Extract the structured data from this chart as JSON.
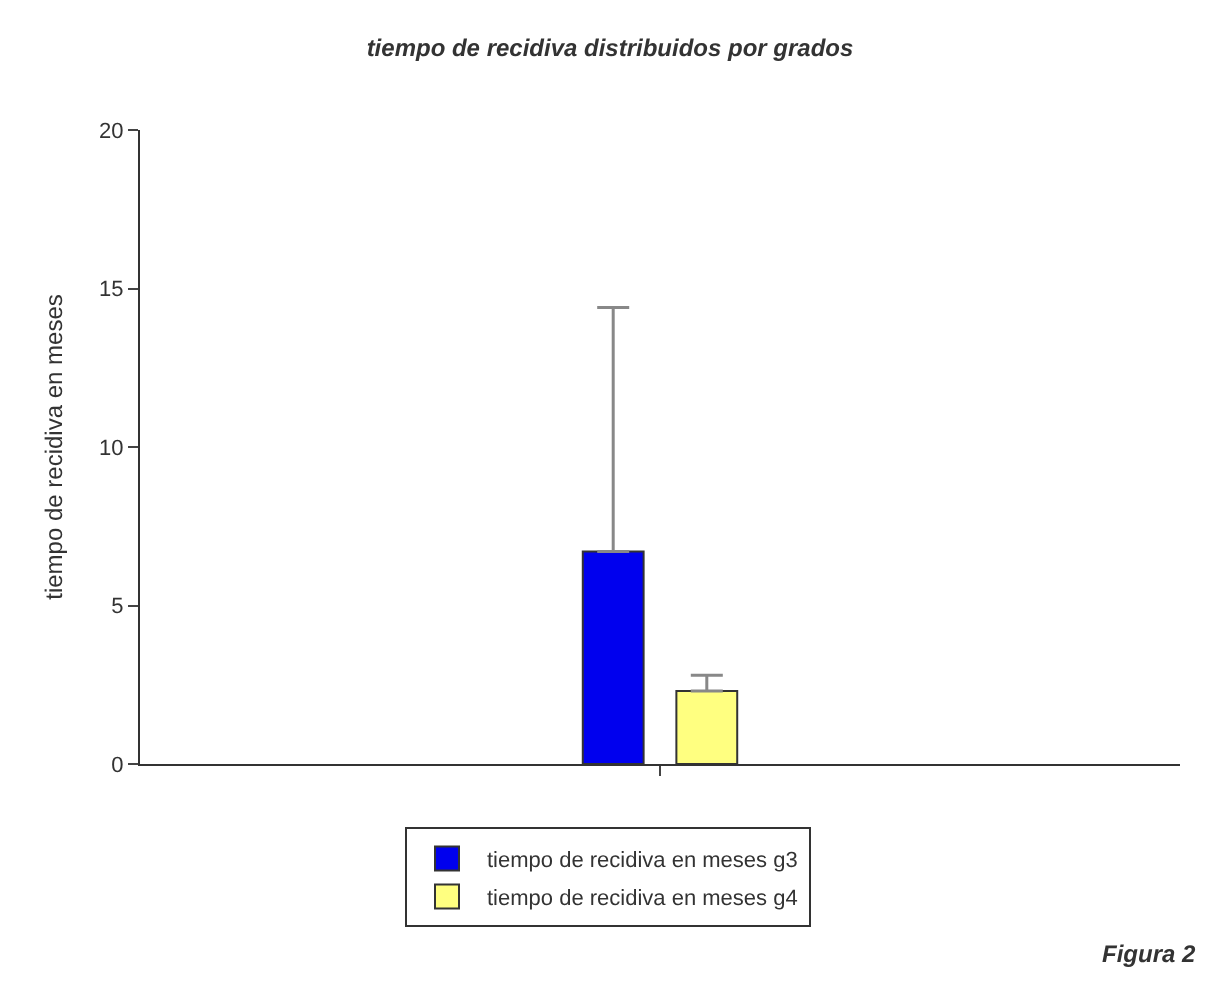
{
  "chart_data": {
    "type": "bar",
    "title": "tiempo de recidiva distribuidos por grados",
    "ylabel": "tiempo de recidiva en meses",
    "categories": [
      null
    ],
    "series": [
      {
        "name": "tiempo de recidiva en meses g3",
        "color": "#0000ee",
        "values": [
          6.7
        ],
        "errors": [
          [
            6.7,
            14.4
          ]
        ]
      },
      {
        "name": "tiempo de recidiva en meses g4",
        "color": "#ffff80",
        "values": [
          2.3
        ],
        "errors": [
          [
            2.3,
            2.8
          ]
        ]
      }
    ],
    "ylim": [
      0,
      20
    ],
    "yticks": [
      0,
      5,
      10,
      15,
      20
    ],
    "legend": "bottom",
    "annotations": [
      "Figura 2"
    ]
  }
}
